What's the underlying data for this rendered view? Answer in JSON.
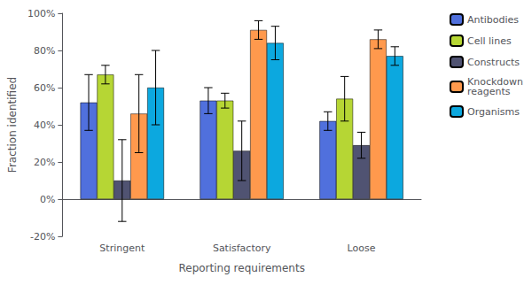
{
  "chart_data": {
    "type": "bar",
    "categories": [
      "Stringent",
      "Satisfactory",
      "Loose"
    ],
    "series": [
      {
        "name": "Antibodies",
        "values": [
          0.52,
          0.53,
          0.42
        ],
        "errors": [
          0.15,
          0.07,
          0.05
        ]
      },
      {
        "name": "Cell lines",
        "values": [
          0.67,
          0.53,
          0.54
        ],
        "errors": [
          0.05,
          0.04,
          0.12
        ]
      },
      {
        "name": "Constructs",
        "values": [
          0.1,
          0.26,
          0.29
        ],
        "errors": [
          0.22,
          0.16,
          0.07
        ]
      },
      {
        "name": "Knockdown\nreagents",
        "values": [
          0.46,
          0.91,
          0.86
        ],
        "errors": [
          0.21,
          0.05,
          0.05
        ]
      },
      {
        "name": "Organisms",
        "values": [
          0.6,
          0.84,
          0.77
        ],
        "errors": [
          0.2,
          0.09,
          0.05
        ]
      }
    ],
    "xlabel": "Reporting requirements",
    "ylabel": "Fraction identified",
    "ylim": [
      -0.2,
      1.0
    ],
    "yticks": [
      {
        "value": -0.2,
        "label": "-20%"
      },
      {
        "value": 0.0,
        "label": "0%"
      },
      {
        "value": 0.2,
        "label": "20%"
      },
      {
        "value": 0.4,
        "label": "40%"
      },
      {
        "value": 0.6,
        "label": "60%"
      },
      {
        "value": 0.8,
        "label": "80%"
      },
      {
        "value": 1.0,
        "label": "100%"
      }
    ],
    "grid": false,
    "legend": "right"
  }
}
